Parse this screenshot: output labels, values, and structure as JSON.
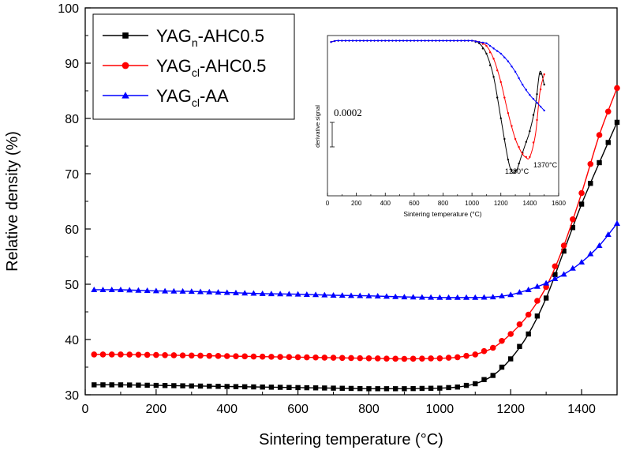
{
  "chart_data": [
    {
      "type": "line",
      "title": "",
      "xlabel": "Sintering temperature (°C)",
      "ylabel": "Relative density (%)",
      "xlim": [
        0,
        1500
      ],
      "ylim": [
        30,
        100
      ],
      "xticks": [
        0,
        200,
        400,
        600,
        800,
        1000,
        1200,
        1400
      ],
      "yticks": [
        30,
        40,
        50,
        60,
        70,
        80,
        90,
        100
      ],
      "grid": false,
      "legend_position": "top-left",
      "legend": [
        {
          "base": "YAG",
          "sub": "n",
          "rest": "-AHC0.5",
          "marker": "square",
          "color": "#000000"
        },
        {
          "base": "YAG",
          "sub": "cl",
          "rest": "-AHC0.5",
          "marker": "circle",
          "color": "#ff0000"
        },
        {
          "base": "YAG",
          "sub": "cl",
          "rest": "-AA",
          "marker": "triangle",
          "color": "#0000ff"
        }
      ],
      "series": [
        {
          "name": "YAGn-AHC0.5",
          "color": "#000000",
          "marker": "square",
          "x": [
            25,
            100,
            200,
            300,
            400,
            500,
            600,
            700,
            800,
            900,
            1000,
            1050,
            1100,
            1150,
            1200,
            1250,
            1300,
            1350,
            1400,
            1450,
            1500
          ],
          "y": [
            31.8,
            31.8,
            31.7,
            31.6,
            31.5,
            31.4,
            31.3,
            31.2,
            31.1,
            31.1,
            31.2,
            31.4,
            32.0,
            33.5,
            36.5,
            41.0,
            47.5,
            56.0,
            64.5,
            72.0,
            79.3
          ]
        },
        {
          "name": "YAGcl-AHC0.5",
          "color": "#ff0000",
          "marker": "circle",
          "x": [
            25,
            100,
            200,
            300,
            400,
            500,
            600,
            700,
            800,
            900,
            1000,
            1050,
            1100,
            1150,
            1200,
            1250,
            1300,
            1350,
            1400,
            1450,
            1500
          ],
          "y": [
            37.3,
            37.3,
            37.2,
            37.1,
            37.0,
            36.9,
            36.8,
            36.7,
            36.6,
            36.5,
            36.6,
            36.8,
            37.3,
            38.5,
            41.0,
            44.5,
            49.5,
            57.0,
            66.5,
            77.0,
            85.5
          ]
        },
        {
          "name": "YAGcl-AA",
          "color": "#0000ff",
          "marker": "triangle",
          "x": [
            25,
            100,
            200,
            300,
            400,
            500,
            600,
            700,
            800,
            900,
            1000,
            1100,
            1150,
            1200,
            1250,
            1300,
            1350,
            1400,
            1450,
            1500
          ],
          "y": [
            49.0,
            49.0,
            48.8,
            48.7,
            48.5,
            48.3,
            48.2,
            48.0,
            47.9,
            47.7,
            47.6,
            47.6,
            47.7,
            48.1,
            49.0,
            50.2,
            51.8,
            54.0,
            57.0,
            61.0
          ]
        }
      ]
    },
    {
      "type": "line",
      "title": "",
      "xlabel": "Sintering temperature (°C)",
      "ylabel": "derivative signal",
      "xlim": [
        0,
        1600
      ],
      "xticks": [
        0,
        200,
        400,
        600,
        800,
        1000,
        1200,
        1400,
        1600
      ],
      "scale_bar_label": "0.0002",
      "annotations": [
        "1280°C",
        "1370°C"
      ],
      "ylim": [
        -0.0006,
        2e-05
      ],
      "series": [
        {
          "name": "YAGn-AHC0.5",
          "color": "#000000",
          "x": [
            25,
            60,
            100,
            150,
            200,
            300,
            400,
            500,
            600,
            700,
            800,
            900,
            1000,
            1050,
            1100,
            1150,
            1200,
            1250,
            1280,
            1310,
            1340,
            1370,
            1400,
            1440,
            1470,
            1500
          ],
          "y": [
            -5e-06,
            0.0,
            0.0,
            0.0,
            0.0,
            0.0,
            0.0,
            0.0,
            0.0,
            0.0,
            0.0,
            0.0,
            0.0,
            -1e-05,
            -5e-05,
            -0.00014,
            -0.0003,
            -0.00046,
            -0.00051,
            -0.0005,
            -0.00045,
            -0.0004,
            -0.00035,
            -0.00025,
            -0.00012,
            -0.00017
          ]
        },
        {
          "name": "YAGcl-AHC0.5",
          "color": "#ff0000",
          "x": [
            25,
            60,
            100,
            150,
            200,
            300,
            400,
            500,
            600,
            700,
            800,
            900,
            1000,
            1050,
            1100,
            1150,
            1200,
            1250,
            1300,
            1340,
            1370,
            1400,
            1440,
            1470,
            1500
          ],
          "y": [
            -5e-06,
            0.0,
            0.0,
            0.0,
            0.0,
            0.0,
            0.0,
            0.0,
            0.0,
            0.0,
            0.0,
            0.0,
            0.0,
            -5e-06,
            -2e-05,
            -7e-05,
            -0.00016,
            -0.00028,
            -0.00038,
            -0.00043,
            -0.00045,
            -0.00045,
            -0.00036,
            -0.0002,
            -0.00013
          ]
        },
        {
          "name": "YAGcl-AA",
          "color": "#0000ff",
          "x": [
            25,
            60,
            100,
            150,
            200,
            300,
            400,
            500,
            600,
            700,
            800,
            900,
            1000,
            1050,
            1100,
            1150,
            1200,
            1250,
            1300,
            1350,
            1400,
            1450,
            1500
          ],
          "y": [
            -5e-06,
            0.0,
            0.0,
            0.0,
            0.0,
            0.0,
            0.0,
            0.0,
            0.0,
            0.0,
            0.0,
            0.0,
            0.0,
            -5e-06,
            -1e-05,
            -3e-05,
            -5e-05,
            -8e-05,
            -0.00012,
            -0.00017,
            -0.00021,
            -0.00024,
            -0.00027
          ]
        }
      ]
    }
  ]
}
